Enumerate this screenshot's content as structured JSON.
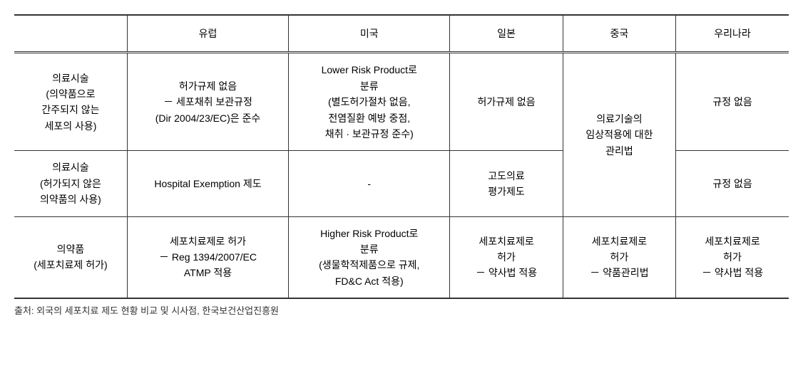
{
  "table": {
    "columns": [
      "",
      "유럽",
      "미국",
      "일본",
      "중국",
      "우리나라"
    ],
    "col_widths_pct": [
      14,
      20,
      20,
      14,
      14,
      14
    ],
    "header_border_top": "2px solid #333333",
    "header_border_bottom": "3px double #333333",
    "body_border": "1px solid #333333",
    "bottom_border": "2px solid #333333",
    "background_color": "#ffffff",
    "text_color": "#333333",
    "fontsize": 14,
    "rows": [
      {
        "header": "의료시술\n(의약품으로\n간주되지 않는\n세포의 사용)",
        "europe": "허가규제 없음\n－ 세포채취 보관규정\n(Dir 2004/23/EC)은 준수",
        "usa": "Lower Risk Product로\n분류\n(별도허가절차 없음,\n전염질환 예방 중점,\n채취 · 보관규정 준수)",
        "japan": "허가규제 없음",
        "china_rowspan": 2,
        "china": "의료기술의\n임상적용에 대한\n관리법",
        "korea": "규정 없음"
      },
      {
        "header": "의료시술\n(허가되지 않은\n의약품의 사용)",
        "europe": "Hospital Exemption 제도",
        "usa": "-",
        "japan": "고도의료\n평가제도",
        "korea": "규정 없음"
      },
      {
        "header": "의약품\n(세포치료제 허가)",
        "europe": "세포치료제로 허가\n－ Reg 1394/2007/EC\nATMP 적용",
        "usa": "Higher Risk Product로\n분류\n(생물학적제품으로 규제,\nFD&C Act 적용)",
        "japan": "세포치료제로\n허가\n－ 약사법 적용",
        "china_rowspan": 1,
        "china": "세포치료제로\n허가\n－ 약품관리법",
        "korea": "세포치료제로\n허가\n－ 약사법 적용"
      }
    ]
  },
  "source": "출처: 외국의 세포치료 제도 현황 비교 및 시사점, 한국보건산업진흥원"
}
